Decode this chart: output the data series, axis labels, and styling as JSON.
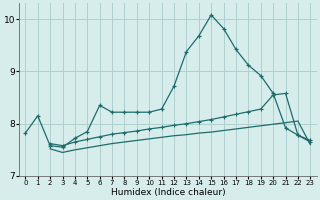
{
  "title": "",
  "xlabel": "Humidex (Indice chaleur)",
  "xlim": [
    -0.5,
    23.5
  ],
  "ylim": [
    7.2,
    10.3
  ],
  "yticks": [
    7,
    8,
    9,
    10
  ],
  "xticks": [
    0,
    1,
    2,
    3,
    4,
    5,
    6,
    7,
    8,
    9,
    10,
    11,
    12,
    13,
    14,
    15,
    16,
    17,
    18,
    19,
    20,
    21,
    22,
    23
  ],
  "bg_color": "#d6edec",
  "grid_color": "#aed0ce",
  "line_color": "#1e6b6b",
  "line1_x": [
    0,
    1,
    2,
    3,
    4,
    5,
    6,
    7,
    8,
    9,
    10,
    11,
    12,
    13,
    14,
    15,
    16,
    17,
    18,
    19,
    20,
    21,
    22,
    23
  ],
  "line1_y": [
    7.82,
    8.15,
    7.58,
    7.55,
    7.72,
    7.85,
    8.35,
    8.22,
    8.22,
    8.22,
    8.22,
    8.28,
    8.72,
    9.38,
    9.68,
    10.08,
    9.82,
    9.42,
    9.12,
    8.92,
    8.58,
    7.92,
    7.78,
    7.68
  ],
  "line2_x": [
    2,
    3,
    4,
    5,
    6,
    7,
    8,
    9,
    10,
    11,
    12,
    13,
    14,
    15,
    16,
    17,
    18,
    19,
    20,
    21,
    22,
    23
  ],
  "line2_y": [
    7.62,
    7.58,
    7.65,
    7.7,
    7.75,
    7.8,
    7.83,
    7.86,
    7.9,
    7.93,
    7.97,
    8.0,
    8.04,
    8.08,
    8.13,
    8.18,
    8.23,
    8.28,
    8.55,
    8.58,
    7.78,
    7.65
  ],
  "line3_x": [
    2,
    3,
    4,
    5,
    6,
    7,
    8,
    9,
    10,
    11,
    12,
    13,
    14,
    15,
    16,
    17,
    18,
    19,
    20,
    21,
    22,
    23
  ],
  "line3_y": [
    7.52,
    7.45,
    7.5,
    7.54,
    7.58,
    7.62,
    7.65,
    7.68,
    7.71,
    7.74,
    7.77,
    7.79,
    7.82,
    7.84,
    7.87,
    7.9,
    7.93,
    7.96,
    7.99,
    8.02,
    8.05,
    7.6
  ]
}
